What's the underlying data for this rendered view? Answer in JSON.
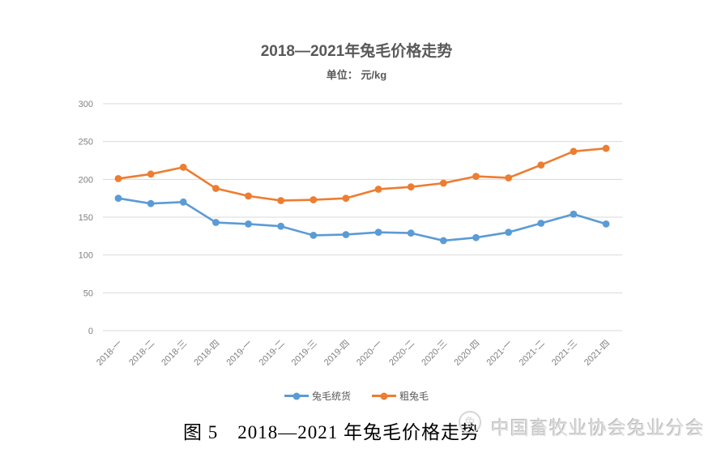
{
  "page": {
    "title": "2018—2021年兔毛价格走势",
    "subtitle": "单位： 元/kg",
    "caption": "图 5　2018—2021 年兔毛价格走势",
    "watermark": "中国畜牧业协会兔业分会",
    "watermark_emblem": "兔"
  },
  "colors": {
    "series_blue": "#5B9BD5",
    "series_orange": "#ED7D31",
    "gridline": "#D9D9D9",
    "axis_text": "#808080",
    "title_text": "#595959"
  },
  "chart_data": {
    "type": "line",
    "title": "2018—2021年兔毛价格走势",
    "subtitle": "单位： 元/kg",
    "xlabel": "",
    "ylabel": "元/kg",
    "ylim": [
      0,
      300
    ],
    "ytick_step": 50,
    "grid": true,
    "legend_position": "bottom",
    "categories": [
      "2018-一",
      "2018-二",
      "2018-三",
      "2018-四",
      "2019-一",
      "2019-二",
      "2019-三",
      "2019-四",
      "2020-一",
      "2020-二",
      "2020-三",
      "2020-四",
      "2021-一",
      "2021-二",
      "2021-三",
      "2021-四"
    ],
    "series": [
      {
        "name": "兔毛统货",
        "color": "#5B9BD5",
        "values": [
          175,
          168,
          170,
          143,
          141,
          138,
          126,
          127,
          130,
          129,
          119,
          123,
          130,
          142,
          154,
          141
        ]
      },
      {
        "name": "粗兔毛",
        "color": "#ED7D31",
        "values": [
          201,
          207,
          216,
          188,
          178,
          172,
          173,
          175,
          187,
          190,
          195,
          204,
          202,
          219,
          237,
          241
        ]
      }
    ]
  }
}
